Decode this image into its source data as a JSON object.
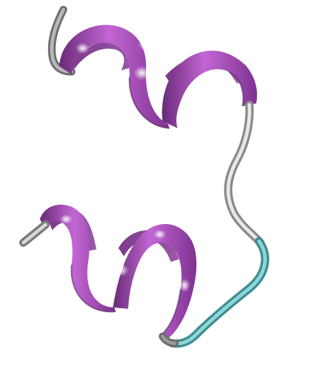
{
  "image": {
    "subject": "protein-ribbon-structure",
    "background_color": "#ffffff"
  },
  "colors": {
    "helix_light": "#d27be0",
    "helix_mid": "#a844bb",
    "helix_dark": "#6a2a78",
    "helix_shadow": "#4a1f55",
    "coil_gray_light": "#e4e4e4",
    "coil_gray_mid": "#a8a8a8",
    "coil_gray_dark": "#6c6c6c",
    "coil_cyan_light": "#8fd6d9",
    "coil_cyan_mid": "#5fb4b8",
    "coil_cyan_dark": "#3d8d92",
    "highlight": "#ffffff"
  },
  "structure": {
    "helices": 2,
    "segments": [
      "n-terminus-coil-gray",
      "helix-upper-magenta",
      "loop-coil-gray",
      "loop-coil-cyan",
      "helix-lower-magenta",
      "c-terminus-coil-gray"
    ]
  }
}
